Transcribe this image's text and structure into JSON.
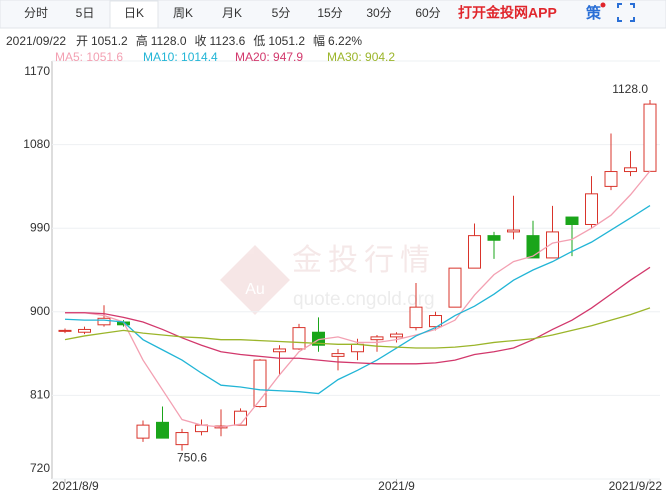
{
  "toolbar": {
    "tabs": [
      "分时",
      "5日",
      "日K",
      "周K",
      "月K",
      "5分",
      "15分",
      "30分",
      "60分"
    ],
    "active": 2,
    "app_link": "打开金投网APP",
    "strategy": "策"
  },
  "quote": {
    "date": "2021/09/22",
    "fields": [
      {
        "label": "开",
        "value": "1051.2"
      },
      {
        "label": "高",
        "value": "1128.0"
      },
      {
        "label": "收",
        "value": "1123.6"
      },
      {
        "label": "低",
        "value": "1051.2"
      },
      {
        "label": "幅",
        "value": "6.22%"
      }
    ]
  },
  "watermark": {
    "logo": "Au",
    "brand": "金投行情",
    "url": "quote.cngold.org"
  },
  "chart_data": {
    "type": "candlestick",
    "categories": [
      "2021/8/9",
      null,
      null,
      null,
      null,
      null,
      null,
      null,
      null,
      null,
      null,
      null,
      null,
      null,
      null,
      null,
      null,
      "2021/9",
      null,
      null,
      null,
      null,
      null,
      null,
      null,
      null,
      null,
      null,
      null,
      null,
      "2021/9/22"
    ],
    "open": [
      879,
      878,
      886,
      889,
      764,
      781,
      757,
      771,
      775,
      778,
      798,
      857,
      860,
      878,
      852,
      857,
      870,
      873,
      883,
      884,
      905,
      947,
      982,
      986,
      982,
      958,
      1002,
      994,
      1035,
      1051,
      1051.2
    ],
    "high": [
      882,
      884,
      907,
      891,
      783,
      798,
      774,
      784,
      795,
      796,
      849,
      864,
      887,
      894,
      860,
      871,
      875,
      878,
      931,
      900,
      947,
      995,
      986,
      1025,
      998,
      1014,
      1002,
      1046,
      1092,
      1073,
      1128.0
    ],
    "low": [
      877,
      876,
      884,
      884,
      760,
      764,
      750.6,
      767,
      766,
      778,
      797,
      832,
      859,
      857,
      837,
      848,
      857,
      867,
      880,
      880,
      905,
      947,
      957,
      978,
      958,
      958,
      960,
      990,
      1031,
      1046,
      1051.2
    ],
    "close": [
      880,
      881,
      893,
      886,
      778,
      764,
      770,
      778,
      777,
      793,
      848,
      860,
      883,
      864,
      855,
      865,
      873,
      876,
      905,
      896,
      947,
      982,
      977,
      988,
      958,
      986,
      994,
      1027,
      1051,
      1055,
      1123.6
    ],
    "up_color": "#d9342b",
    "down_color": "#1aa51a",
    "series": [
      {
        "name": "MA5: 1051.6",
        "color": "#f3a0b2",
        "values": [
          899,
          899,
          896,
          889,
          848,
          816,
          784,
          778,
          776,
          779,
          805,
          832,
          857,
          870,
          873,
          867,
          867,
          870,
          875,
          881,
          891,
          918,
          940,
          954,
          960,
          974,
          978,
          990,
          1004,
          1026,
          1051.6
        ]
      },
      {
        "name": "MA10: 1014.4",
        "color": "#22b5d6",
        "values": [
          892,
          891,
          891,
          889,
          870,
          859,
          848,
          834,
          821,
          819,
          816,
          815,
          814,
          812,
          827,
          837,
          848,
          861,
          874,
          883,
          896,
          906,
          919,
          934,
          945,
          954,
          965,
          975,
          988,
          1001,
          1014.4
        ]
      },
      {
        "name": "MA20: 947.9",
        "color": "#d2386c",
        "values": [
          899,
          899,
          898,
          894,
          889,
          881,
          872,
          864,
          857,
          854,
          852,
          850,
          850,
          848,
          846,
          845,
          844,
          844,
          844,
          845,
          848,
          854,
          857,
          861,
          870,
          881,
          891,
          904,
          919,
          934,
          947.9
        ]
      },
      {
        "name": "MA30: 904.2",
        "color": "#9bb52a",
        "values": [
          870,
          874,
          877,
          880,
          877,
          875,
          873,
          872,
          870,
          870,
          869,
          868,
          867,
          866,
          865,
          865,
          863,
          862,
          861,
          861,
          862,
          864,
          867,
          869,
          871,
          875,
          880,
          885,
          891,
          897,
          904.2
        ]
      }
    ],
    "annotations": [
      {
        "value": 1128.0,
        "label": "1128.0"
      },
      {
        "value": 750.6,
        "label": "750.6"
      }
    ],
    "ylim": [
      720,
      1170
    ],
    "yticks": [
      720,
      810,
      900,
      990,
      1080,
      1170
    ],
    "grid": true
  }
}
